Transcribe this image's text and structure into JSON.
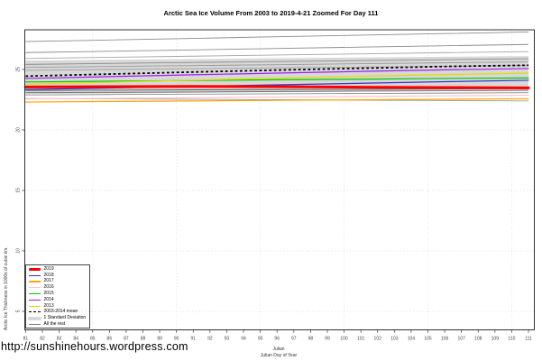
{
  "page": {
    "url_text": "http://sunshinehours.wordpress.com"
  },
  "chart": {
    "title": "Arctic Sea Ice Volume From 2003 to 2019-4-21 Zoomed For Day 111",
    "ylabel": "Arctic Ice Thickness in 1000s of cubic km.",
    "xlabel_line1": "Julian",
    "xlabel_line2": "Julian Day of Year"
  },
  "colors": {
    "red_2019": "#FF0000",
    "blue_2018": "#3535C8",
    "orange_2017": "#FFA500",
    "pink_2016": "#FFC0CB",
    "green_2015": "#00C800",
    "purple_2014": "#A020F0",
    "yellow_2013": "#E3DC00",
    "mean": "#000000",
    "band": "#D8D8D8",
    "rest": "#8c8c8c",
    "grid": "#E6E4E4",
    "axis_text": "#444444"
  },
  "chart_data": {
    "type": "line",
    "title": "Arctic Sea Ice Volume From 2003 to 2019-4-21 Zoomed For Day 111",
    "xlabel": "Julian Day of Year",
    "ylabel": "Arctic Ice Thickness in 1000s of cubic km.",
    "xlim": [
      81,
      111
    ],
    "ylim": [
      3.5,
      28.3
    ],
    "grid": "dashed-light",
    "legend_position": "bottom-left",
    "x": [
      81,
      86,
      91,
      96,
      101,
      106,
      111
    ],
    "x_ticks": [
      81,
      82,
      83,
      84,
      85,
      86,
      87,
      88,
      89,
      90,
      91,
      92,
      93,
      94,
      95,
      96,
      97,
      98,
      99,
      100,
      101,
      102,
      103,
      104,
      105,
      106,
      107,
      108,
      109,
      110,
      111
    ],
    "y_ticks": [
      5,
      10,
      15,
      20,
      25
    ],
    "x_grid": [
      85,
      90,
      95,
      100,
      105,
      110
    ],
    "y_grid": [
      5,
      10,
      15,
      20,
      25
    ],
    "band": {
      "name": "1 Standard Deviation",
      "color": "#D8D8D8",
      "top": [
        25.74,
        25.8,
        25.86,
        25.93,
        25.99,
        26.05,
        26.11
      ],
      "bottom": [
        22.97,
        23.02,
        23.07,
        23.12,
        23.17,
        23.22,
        23.27
      ]
    },
    "rest": {
      "name": "All the rest",
      "lines": [
        {
          "color": "#8c8c8c",
          "values": [
            27.31,
            27.44,
            27.57,
            27.71,
            27.84,
            27.97,
            28.1
          ]
        },
        {
          "color": "#8c8c8c",
          "values": [
            26.4,
            26.51,
            26.62,
            26.74,
            26.85,
            26.96,
            27.07
          ]
        },
        {
          "color": "#a6a6a6",
          "values": [
            25.91,
            26.01,
            26.1,
            26.2,
            26.29,
            26.39,
            26.48
          ]
        },
        {
          "color": "#8c8c8c",
          "values": [
            25.42,
            25.5,
            25.58,
            25.66,
            25.73,
            25.81,
            25.89
          ]
        },
        {
          "color": "#999999",
          "values": [
            25.17,
            25.25,
            25.32,
            25.4,
            25.48,
            25.55,
            25.63
          ]
        },
        {
          "color": "#a0a0a0",
          "values": [
            24.93,
            25.0,
            25.06,
            25.13,
            25.2,
            25.26,
            25.33
          ]
        },
        {
          "color": "#5e5e5e",
          "values": [
            23.27,
            23.29,
            23.32,
            23.34,
            23.36,
            23.39,
            23.41
          ]
        },
        {
          "color": "#6e6e6e",
          "values": [
            23.08,
            23.11,
            23.14,
            23.18,
            23.21,
            23.24,
            23.27
          ]
        },
        {
          "color": "#8a8a8a",
          "values": [
            22.9,
            22.93,
            22.96,
            22.99,
            23.02,
            23.05,
            23.08
          ]
        },
        {
          "color": "#9c9c9c",
          "values": [
            22.6,
            22.57,
            22.53,
            22.5,
            22.46,
            22.43,
            22.4
          ]
        }
      ]
    },
    "series": [
      {
        "name": "2016",
        "color": "#FFC0CB",
        "width": 1.2,
        "values": [
          22.56,
          22.61,
          22.66,
          22.72,
          22.77,
          22.82,
          22.87
        ]
      },
      {
        "name": "2017",
        "color": "#FFA500",
        "width": 1.2,
        "values": [
          22.31,
          22.36,
          22.4,
          22.45,
          22.49,
          22.54,
          22.58
        ]
      },
      {
        "name": "2015",
        "color": "#00C800",
        "width": 1.2,
        "values": [
          23.97,
          24.03,
          24.09,
          24.15,
          24.2,
          24.26,
          24.3
        ]
      },
      {
        "name": "2013",
        "color": "#E3DC00",
        "width": 1.2,
        "values": [
          23.78,
          23.95,
          24.12,
          24.28,
          24.44,
          24.58,
          24.7
        ]
      },
      {
        "name": "2018",
        "color": "#3535C8",
        "width": 1.2,
        "values": [
          23.34,
          23.47,
          23.6,
          23.73,
          23.86,
          23.99,
          24.11
        ]
      },
      {
        "name": "2014",
        "color": "#A020F0",
        "width": 1.2,
        "values": [
          24.26,
          24.41,
          24.56,
          24.7,
          24.84,
          24.97,
          25.08
        ]
      },
      {
        "name": "2019",
        "color": "#FF0000",
        "width": 3.0,
        "values": [
          23.55,
          23.58,
          23.6,
          23.58,
          23.54,
          23.51,
          23.48
        ]
      }
    ],
    "mean": {
      "name": "2003-2014 mean",
      "color": "#000000",
      "style": "dashed",
      "values": [
        24.45,
        24.62,
        24.79,
        24.95,
        25.1,
        25.25,
        25.35
      ]
    }
  },
  "legend": {
    "items": [
      {
        "label": "2019",
        "swatch": "thick",
        "color": "#FF0000"
      },
      {
        "label": "2018",
        "swatch": "line",
        "color": "#3535C8"
      },
      {
        "label": "2017",
        "swatch": "line",
        "color": "#FFA500"
      },
      {
        "label": "2016",
        "swatch": "line",
        "color": "#FFC0CB"
      },
      {
        "label": "2015",
        "swatch": "line",
        "color": "#00C800"
      },
      {
        "label": "2014",
        "swatch": "line",
        "color": "#A020F0"
      },
      {
        "label": "2013",
        "swatch": "line",
        "color": "#E3DC00"
      },
      {
        "label": "2003-2014 mean",
        "swatch": "dashed",
        "color": "#000000"
      },
      {
        "label": "1 Standard Deviation",
        "swatch": "band",
        "color": "#D8D8D8"
      },
      {
        "label": "All the rest",
        "swatch": "line",
        "color": "#808080"
      }
    ]
  }
}
